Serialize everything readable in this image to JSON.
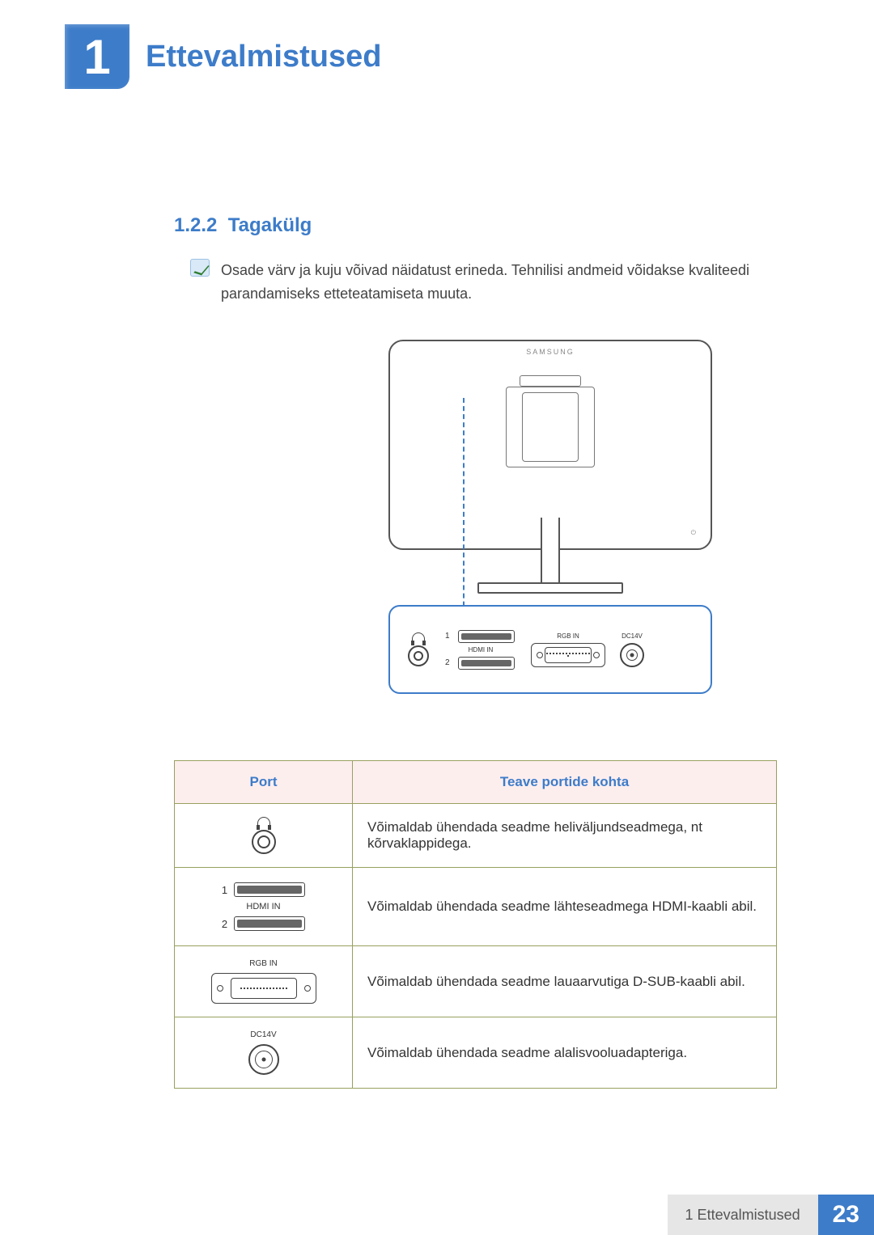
{
  "chapter": {
    "number": "1",
    "title": "Ettevalmistused"
  },
  "section": {
    "number": "1.2.2",
    "title": "Tagakülg"
  },
  "note": {
    "text": "Osade värv ja kuju võivad näidatust erineda. Tehnilisi andmeid võidakse kvaliteedi parandamiseks etteteatamiseta muuta."
  },
  "diagram": {
    "brand": "SAMSUNG",
    "power_mark": "⏻",
    "panel": {
      "hdmi": {
        "label": "HDMI IN",
        "n1": "1",
        "n2": "2"
      },
      "rgb": {
        "label": "RGB IN"
      },
      "dc": {
        "label": "DC14V"
      }
    }
  },
  "table": {
    "headers": {
      "port": "Port",
      "info": "Teave portide kohta"
    },
    "rows": [
      {
        "kind": "headphone",
        "desc": "Võimaldab ühendada seadme heliväljundseadmega, nt kõrvaklappidega."
      },
      {
        "kind": "hdmi",
        "label": "HDMI IN",
        "n1": "1",
        "n2": "2",
        "desc": "Võimaldab ühendada seadme lähteseadmega HDMI-kaabli abil."
      },
      {
        "kind": "rgb",
        "label": "RGB IN",
        "desc": "Võimaldab ühendada seadme lauaarvutiga D-SUB-kaabli abil."
      },
      {
        "kind": "dc",
        "label": "DC14V",
        "desc": "Võimaldab ühendada seadme alalisvooluadapteriga."
      }
    ]
  },
  "footer": {
    "crumb": "1 Ettevalmistused",
    "page": "23"
  },
  "colors": {
    "accent": "#3d7cc9",
    "table_border": "#98a05f",
    "table_header_bg": "#fdeeee",
    "footer_gray": "#e6e6e6"
  }
}
